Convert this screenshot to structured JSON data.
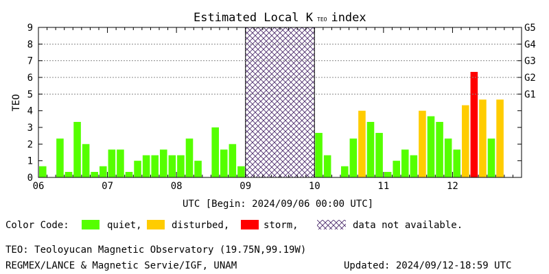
{
  "chart_data": {
    "type": "bar",
    "title": "Estimated Local K",
    "title_subscript": "TEO",
    "title_suffix": "index",
    "ylabel": "TEO",
    "xlabel": "UTC [Begin: 2024/09/06 00:00 UTC]",
    "ylim": [
      0,
      9
    ],
    "y_ticks": [
      "0",
      "1",
      "2",
      "3",
      "4",
      "5",
      "6",
      "7",
      "8",
      "9"
    ],
    "x_ticks": [
      "06",
      "07",
      "08",
      "09",
      "10",
      "11",
      "12"
    ],
    "x_range_days": [
      6,
      13
    ],
    "right_axis_labels": [
      {
        "label": "G1",
        "level": 5
      },
      {
        "label": "G2",
        "level": 6
      },
      {
        "label": "G3",
        "level": 7
      },
      {
        "label": "G4",
        "level": 8
      },
      {
        "label": "G5",
        "level": 9
      }
    ],
    "no_data_interval": {
      "start_day": 9,
      "end_day": 10
    },
    "bars_per_day": 8,
    "values": [
      0.67,
      0,
      2.33,
      0.33,
      3.33,
      2.0,
      0.33,
      0.67,
      1.67,
      1.67,
      0.33,
      1.0,
      1.33,
      1.33,
      1.67,
      1.33,
      1.33,
      2.33,
      1.0,
      0,
      3.0,
      1.67,
      2.0,
      0.67,
      null,
      null,
      null,
      null,
      null,
      null,
      null,
      null,
      2.67,
      1.33,
      0,
      0.67,
      2.33,
      4.0,
      3.33,
      2.67,
      0.33,
      1.0,
      1.67,
      1.33,
      4.0,
      3.67,
      3.33,
      2.33,
      1.67,
      4.33,
      6.33,
      4.67,
      2.33,
      4.67
    ],
    "status": [
      "quiet",
      "quiet",
      "quiet",
      "quiet",
      "quiet",
      "quiet",
      "quiet",
      "quiet",
      "quiet",
      "quiet",
      "quiet",
      "quiet",
      "quiet",
      "quiet",
      "quiet",
      "quiet",
      "quiet",
      "quiet",
      "quiet",
      "quiet",
      "quiet",
      "quiet",
      "quiet",
      "quiet",
      null,
      null,
      null,
      null,
      null,
      null,
      null,
      null,
      "quiet",
      "quiet",
      "quiet",
      "quiet",
      "quiet",
      "disturbed",
      "quiet",
      "quiet",
      "quiet",
      "quiet",
      "quiet",
      "quiet",
      "disturbed",
      "quiet",
      "quiet",
      "quiet",
      "quiet",
      "disturbed",
      "storm",
      "disturbed",
      "quiet",
      "disturbed"
    ],
    "colors": {
      "quiet": "#55ff00",
      "disturbed": "#ffcc00",
      "storm": "#ff0000",
      "no_data": "#4b2a6b",
      "gridline": "#888888"
    },
    "grid": false
  },
  "legend": {
    "prefix": "Color Code:",
    "quiet": "quiet,",
    "disturbed": "disturbed,",
    "storm": "storm,",
    "no_data": "data not available."
  },
  "footer": {
    "observatory": "TEO: Teoloyucan Magnetic Observatory (19.75N,99.19W)",
    "institution": "REGMEX/LANCE & Magnetic Servie/IGF, UNAM",
    "updated": "Updated: 2024/09/12-18:59 UTC"
  }
}
